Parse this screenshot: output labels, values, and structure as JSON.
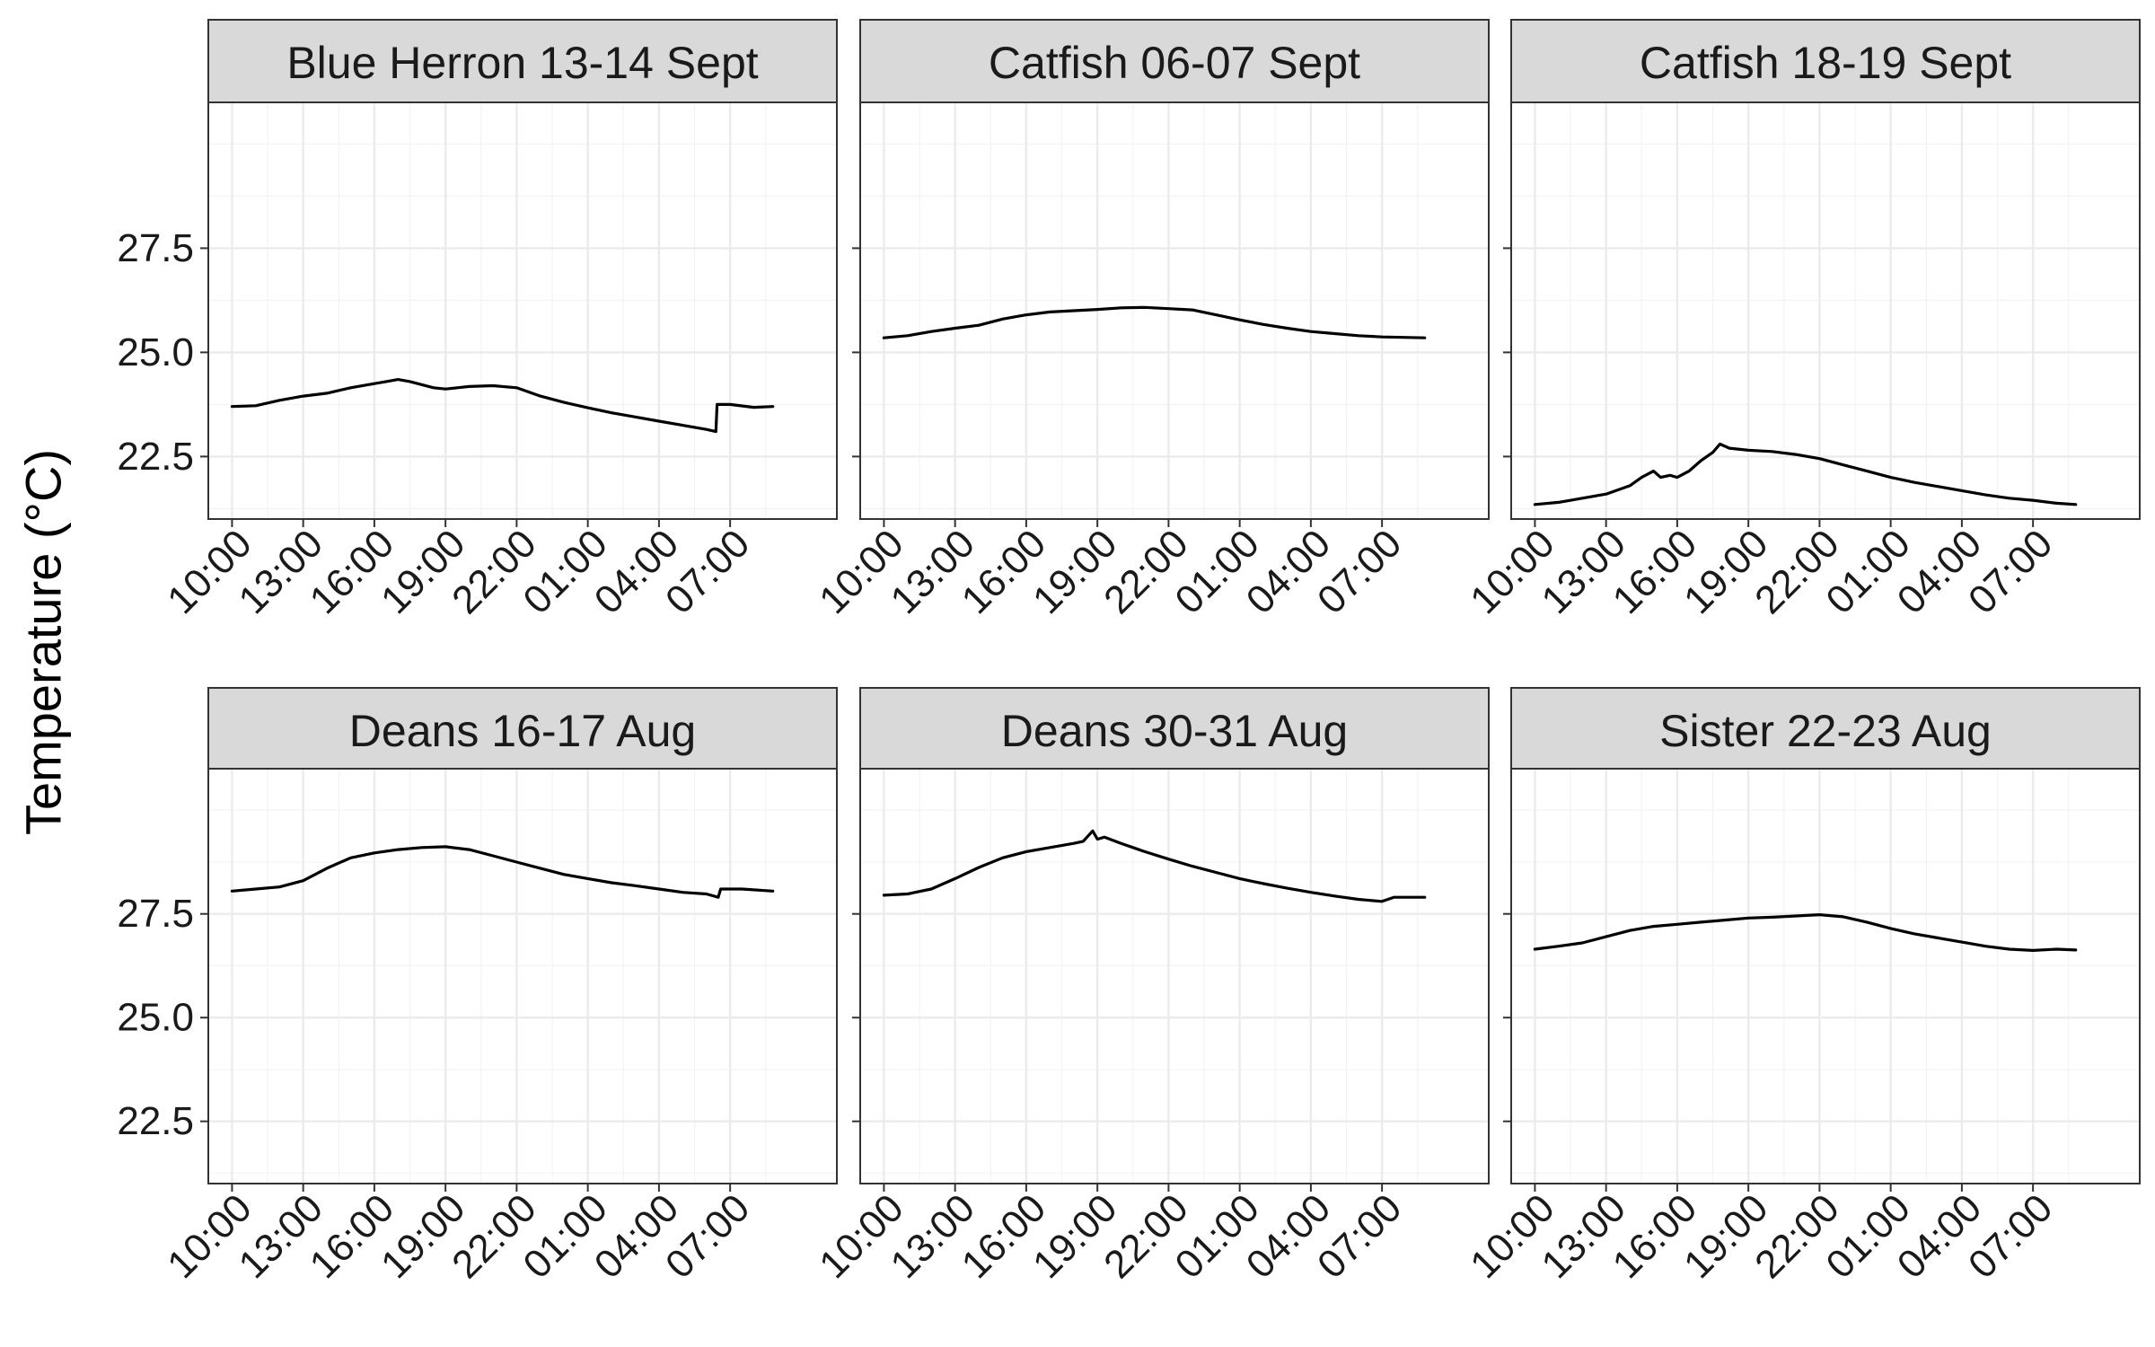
{
  "chart_data": {
    "type": "line",
    "ylabel": "Temperature (°C)",
    "xlabel": "",
    "ylim": [
      21.0,
      31.0
    ],
    "yticks": [
      22.5,
      25.0,
      27.5
    ],
    "xtick_labels": [
      "10:00",
      "13:00",
      "16:00",
      "19:00",
      "22:00",
      "01:00",
      "04:00",
      "07:00"
    ],
    "xlim_hours": [
      9.0,
      35.5
    ],
    "grid": true,
    "panels": [
      {
        "title": "Blue Herron 13-14 Sept",
        "points": [
          [
            10.0,
            23.7
          ],
          [
            11.0,
            23.72
          ],
          [
            12.0,
            23.85
          ],
          [
            13.0,
            23.95
          ],
          [
            14.0,
            24.02
          ],
          [
            15.0,
            24.15
          ],
          [
            16.0,
            24.25
          ],
          [
            16.5,
            24.3
          ],
          [
            17.0,
            24.35
          ],
          [
            17.5,
            24.3
          ],
          [
            18.5,
            24.15
          ],
          [
            19.0,
            24.12
          ],
          [
            20.0,
            24.18
          ],
          [
            21.0,
            24.2
          ],
          [
            22.0,
            24.15
          ],
          [
            23.0,
            23.95
          ],
          [
            24.0,
            23.8
          ],
          [
            25.0,
            23.67
          ],
          [
            26.0,
            23.55
          ],
          [
            27.0,
            23.45
          ],
          [
            28.0,
            23.35
          ],
          [
            29.0,
            23.25
          ],
          [
            30.0,
            23.15
          ],
          [
            30.4,
            23.1
          ],
          [
            30.45,
            23.75
          ],
          [
            31.0,
            23.75
          ],
          [
            32.0,
            23.68
          ],
          [
            32.8,
            23.7
          ]
        ]
      },
      {
        "title": "Catfish 06-07 Sept",
        "points": [
          [
            10.0,
            25.35
          ],
          [
            11.0,
            25.4
          ],
          [
            12.0,
            25.5
          ],
          [
            13.0,
            25.58
          ],
          [
            14.0,
            25.65
          ],
          [
            15.0,
            25.8
          ],
          [
            16.0,
            25.9
          ],
          [
            17.0,
            25.97
          ],
          [
            18.0,
            26.0
          ],
          [
            19.0,
            26.03
          ],
          [
            20.0,
            26.07
          ],
          [
            21.0,
            26.08
          ],
          [
            22.0,
            26.05
          ],
          [
            23.0,
            26.02
          ],
          [
            24.0,
            25.9
          ],
          [
            25.0,
            25.78
          ],
          [
            26.0,
            25.67
          ],
          [
            27.0,
            25.58
          ],
          [
            28.0,
            25.5
          ],
          [
            29.0,
            25.45
          ],
          [
            30.0,
            25.4
          ],
          [
            31.0,
            25.37
          ],
          [
            32.8,
            25.35
          ]
        ]
      },
      {
        "title": "Catfish 18-19 Sept",
        "points": [
          [
            10.0,
            21.35
          ],
          [
            11.0,
            21.4
          ],
          [
            12.0,
            21.5
          ],
          [
            13.0,
            21.6
          ],
          [
            14.0,
            21.8
          ],
          [
            14.5,
            22.0
          ],
          [
            15.0,
            22.15
          ],
          [
            15.3,
            22.0
          ],
          [
            15.7,
            22.05
          ],
          [
            16.0,
            22.0
          ],
          [
            16.5,
            22.15
          ],
          [
            17.0,
            22.4
          ],
          [
            17.5,
            22.6
          ],
          [
            17.8,
            22.8
          ],
          [
            18.2,
            22.7
          ],
          [
            19.0,
            22.65
          ],
          [
            20.0,
            22.62
          ],
          [
            21.0,
            22.55
          ],
          [
            22.0,
            22.45
          ],
          [
            23.0,
            22.3
          ],
          [
            24.0,
            22.15
          ],
          [
            25.0,
            22.0
          ],
          [
            26.0,
            21.88
          ],
          [
            27.0,
            21.78
          ],
          [
            28.0,
            21.68
          ],
          [
            29.0,
            21.58
          ],
          [
            30.0,
            21.5
          ],
          [
            31.0,
            21.45
          ],
          [
            32.0,
            21.38
          ],
          [
            32.8,
            21.35
          ]
        ]
      },
      {
        "title": "Deans 16-17 Aug",
        "points": [
          [
            10.0,
            28.05
          ],
          [
            11.0,
            28.1
          ],
          [
            12.0,
            28.15
          ],
          [
            13.0,
            28.3
          ],
          [
            14.0,
            28.6
          ],
          [
            15.0,
            28.85
          ],
          [
            16.0,
            28.97
          ],
          [
            17.0,
            29.05
          ],
          [
            18.0,
            29.1
          ],
          [
            19.0,
            29.12
          ],
          [
            20.0,
            29.05
          ],
          [
            21.0,
            28.9
          ],
          [
            22.0,
            28.75
          ],
          [
            23.0,
            28.6
          ],
          [
            24.0,
            28.45
          ],
          [
            25.0,
            28.35
          ],
          [
            26.0,
            28.25
          ],
          [
            27.0,
            28.18
          ],
          [
            28.0,
            28.1
          ],
          [
            29.0,
            28.02
          ],
          [
            30.0,
            27.98
          ],
          [
            30.5,
            27.9
          ],
          [
            30.6,
            28.1
          ],
          [
            31.5,
            28.1
          ],
          [
            32.8,
            28.05
          ]
        ]
      },
      {
        "title": "Deans 30-31 Aug",
        "points": [
          [
            10.0,
            27.95
          ],
          [
            11.0,
            27.98
          ],
          [
            12.0,
            28.1
          ],
          [
            13.0,
            28.35
          ],
          [
            14.0,
            28.62
          ],
          [
            15.0,
            28.85
          ],
          [
            16.0,
            29.0
          ],
          [
            17.0,
            29.1
          ],
          [
            18.0,
            29.2
          ],
          [
            18.4,
            29.25
          ],
          [
            18.8,
            29.5
          ],
          [
            19.0,
            29.3
          ],
          [
            19.3,
            29.35
          ],
          [
            20.0,
            29.2
          ],
          [
            21.0,
            29.0
          ],
          [
            22.0,
            28.82
          ],
          [
            23.0,
            28.65
          ],
          [
            24.0,
            28.5
          ],
          [
            25.0,
            28.35
          ],
          [
            26.0,
            28.23
          ],
          [
            27.0,
            28.12
          ],
          [
            28.0,
            28.02
          ],
          [
            29.0,
            27.93
          ],
          [
            30.0,
            27.85
          ],
          [
            31.0,
            27.8
          ],
          [
            31.5,
            27.9
          ],
          [
            32.8,
            27.9
          ]
        ]
      },
      {
        "title": "Sister 22-23 Aug",
        "points": [
          [
            10.0,
            26.65
          ],
          [
            11.0,
            26.72
          ],
          [
            12.0,
            26.8
          ],
          [
            13.0,
            26.95
          ],
          [
            14.0,
            27.1
          ],
          [
            15.0,
            27.2
          ],
          [
            16.0,
            27.25
          ],
          [
            17.0,
            27.3
          ],
          [
            18.0,
            27.35
          ],
          [
            19.0,
            27.4
          ],
          [
            20.0,
            27.42
          ],
          [
            21.0,
            27.45
          ],
          [
            22.0,
            27.48
          ],
          [
            23.0,
            27.43
          ],
          [
            24.0,
            27.3
          ],
          [
            25.0,
            27.15
          ],
          [
            26.0,
            27.02
          ],
          [
            27.0,
            26.92
          ],
          [
            28.0,
            26.82
          ],
          [
            29.0,
            26.72
          ],
          [
            30.0,
            26.65
          ],
          [
            31.0,
            26.62
          ],
          [
            32.0,
            26.65
          ],
          [
            32.8,
            26.63
          ]
        ]
      }
    ]
  }
}
